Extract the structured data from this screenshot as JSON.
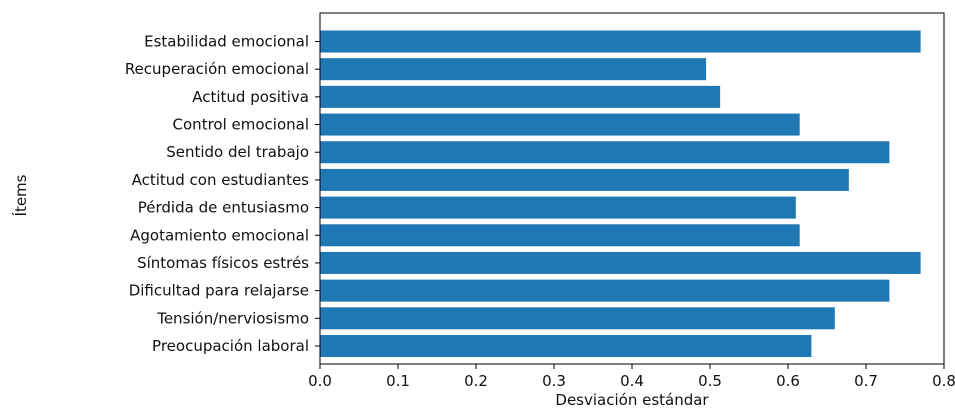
{
  "chart_data": {
    "type": "bar",
    "orientation": "horizontal",
    "categories": [
      "Estabilidad emocional",
      "Recuperación emocional",
      "Actitud positiva",
      "Control emocional",
      "Sentido del trabajo",
      "Actitud con estudiantes",
      "Pérdida de entusiasmo",
      "Agotamiento emocional",
      "Síntomas físicos estrés",
      "Dificultad para relajarse",
      "Tensión/nerviosismo",
      "Preocupación laboral"
    ],
    "values": [
      0.77,
      0.495,
      0.513,
      0.615,
      0.73,
      0.678,
      0.61,
      0.615,
      0.77,
      0.73,
      0.66,
      0.63
    ],
    "xlabel": "Desviación estándar",
    "ylabel": "Ítems",
    "xlim": [
      0.0,
      0.8
    ],
    "xticks": [
      "0.0",
      "0.1",
      "0.2",
      "0.3",
      "0.4",
      "0.5",
      "0.6",
      "0.7",
      "0.8"
    ],
    "bar_color": "#1f77b4",
    "grid": false
  }
}
